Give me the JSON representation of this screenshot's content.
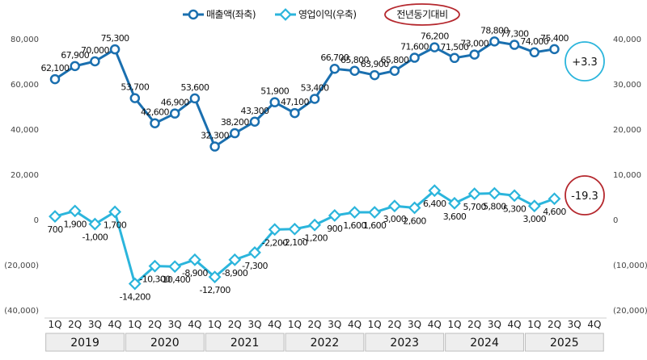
{
  "chart_data": {
    "type": "line",
    "categories": [
      "1Q",
      "2Q",
      "3Q",
      "4Q",
      "1Q",
      "2Q",
      "3Q",
      "4Q",
      "1Q",
      "2Q",
      "3Q",
      "4Q",
      "1Q",
      "2Q",
      "3Q",
      "4Q",
      "1Q",
      "2Q",
      "3Q",
      "4Q",
      "1Q",
      "2Q",
      "3Q",
      "4Q",
      "1Q",
      "2Q",
      "3Q",
      "4Q"
    ],
    "years": [
      "2019",
      "2020",
      "2021",
      "2022",
      "2023",
      "2024",
      "2025"
    ],
    "series": [
      {
        "name": "매출액(좌축)",
        "axis": "left",
        "color": "#1a6faf",
        "values": [
          62100,
          67900,
          70000,
          75300,
          53700,
          42600,
          46900,
          53600,
          32300,
          38200,
          43300,
          51900,
          47100,
          53400,
          66700,
          65800,
          63900,
          65800,
          71600,
          76200,
          71500,
          73000,
          78800,
          77300,
          74000,
          75400,
          null,
          null
        ],
        "labels": [
          "62,100",
          "67,900",
          "70,000",
          "75,300",
          "53,700",
          "42,600",
          "46,900",
          "53,600",
          "32,300",
          "38,200",
          "43,300",
          "51,900",
          "47,100",
          "53,400",
          "66,700",
          "65,800",
          "63,900",
          "65,800",
          "71,600",
          "76,200",
          "71,500",
          "73,000",
          "78,800",
          "77,300",
          "74,000",
          "75,400",
          "",
          ""
        ]
      },
      {
        "name": "영업이익(우축)",
        "axis": "right",
        "color": "#2bb5dc",
        "values": [
          700,
          1900,
          -1000,
          1700,
          -14200,
          -10300,
          -10400,
          -8900,
          -12700,
          -8900,
          -7300,
          -2200,
          -2100,
          -1200,
          900,
          1600,
          1600,
          3000,
          2600,
          6400,
          3600,
          5700,
          5800,
          5300,
          3000,
          4600,
          null,
          null
        ],
        "labels": [
          "700",
          "1,900",
          "-1,000",
          "1,700",
          "-14,200",
          "-10,300",
          "-10,400",
          "-8,900",
          "-12,700",
          "-8,900",
          "-7,300",
          "-2,200",
          "-2,100",
          "-1,200",
          "900",
          "1,600",
          "1,600",
          "3,000",
          "2,600",
          "6,400",
          "3,600",
          "5,700",
          "5,800",
          "5,300",
          "3,000",
          "4,600",
          "",
          ""
        ]
      }
    ],
    "left_axis": {
      "min": -40000,
      "max": 80000,
      "ticks": [
        "80,000",
        "60,000",
        "40,000",
        "20,000",
        "0",
        "(20,000)",
        "(40,000)"
      ]
    },
    "right_axis": {
      "min": -20000,
      "max": 40000,
      "ticks": [
        "40,000",
        "30,000",
        "20,000",
        "10,000",
        "0",
        "(10,000)",
        "(20,000)"
      ]
    },
    "legend_note": "전년동기대비",
    "badges": [
      {
        "text": "+3.3",
        "color": "#2bb5dc"
      },
      {
        "text": "-19.3",
        "color": "#b5282e"
      }
    ],
    "grid": false,
    "legend_position": "top"
  }
}
